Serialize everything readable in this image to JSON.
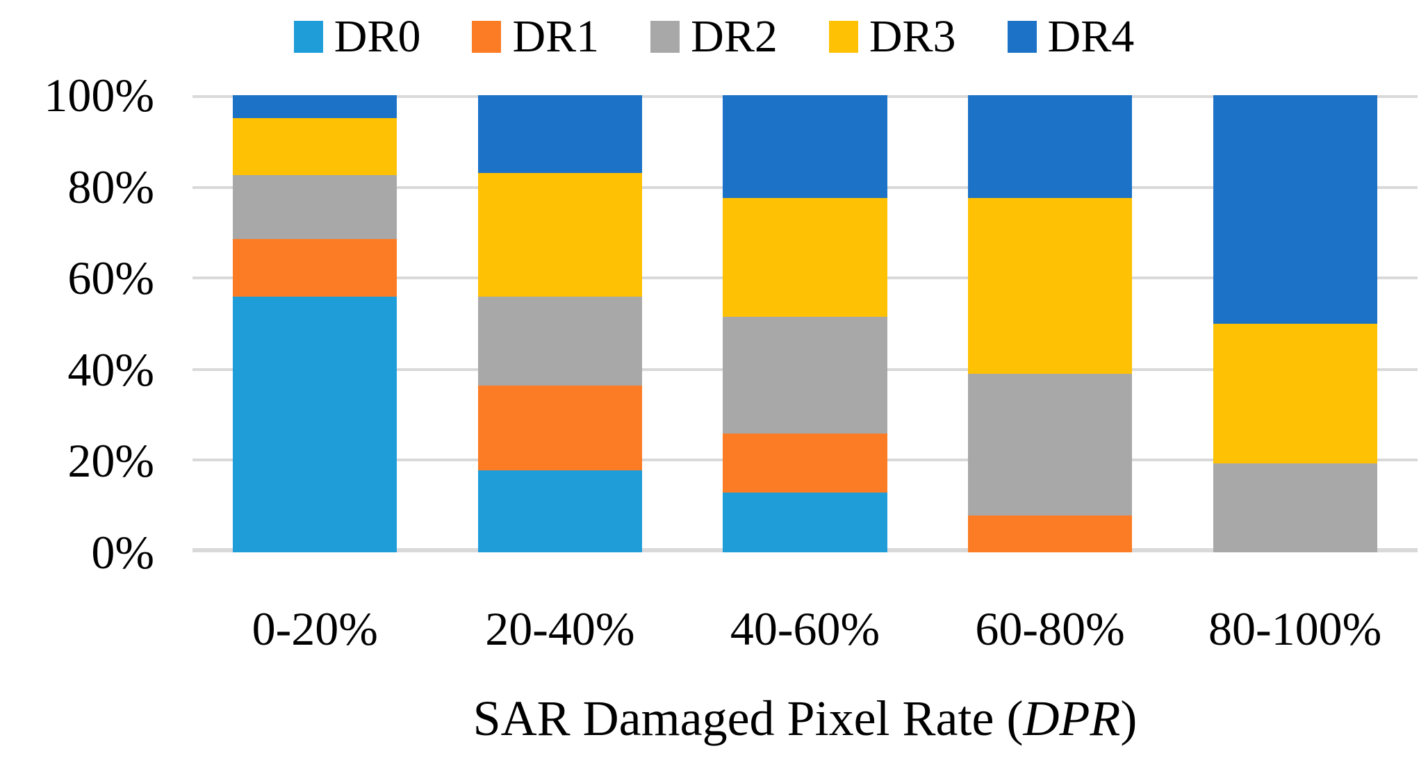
{
  "chart_data": {
    "type": "bar",
    "stacked": true,
    "orientation": "vertical",
    "categories": [
      "0-20%",
      "20-40%",
      "40-60%",
      "60-80%",
      "80-100%"
    ],
    "series": [
      {
        "name": "DR0",
        "color": "#1F9DD9",
        "values": [
          56,
          18,
          13,
          0,
          0
        ]
      },
      {
        "name": "DR1",
        "color": "#FC7C25",
        "values": [
          12.5,
          18.5,
          13,
          8,
          0
        ]
      },
      {
        "name": "DR2",
        "color": "#A8A8A8",
        "values": [
          14,
          19.5,
          25.5,
          31,
          19.5
        ]
      },
      {
        "name": "DR3",
        "color": "#FFC103",
        "values": [
          12.5,
          27,
          26,
          38.5,
          30.5
        ]
      },
      {
        "name": "DR4",
        "color": "#1C72C6",
        "values": [
          5,
          17,
          22.5,
          22.5,
          50
        ]
      }
    ],
    "y_ticks": [
      "100%",
      "80%",
      "60%",
      "40%",
      "20%",
      "0%"
    ],
    "ylim": [
      0,
      100
    ],
    "y_unit": "percent",
    "grid": true,
    "gridline_color": "#D9D9D9",
    "legend_position": "top",
    "xlabel": "SAR Damaged Pixel Rate (DPR)",
    "xlabel_parts": {
      "prefix": "SAR Damaged Pixel Rate (",
      "italic": "DPR",
      "suffix": ")"
    }
  }
}
